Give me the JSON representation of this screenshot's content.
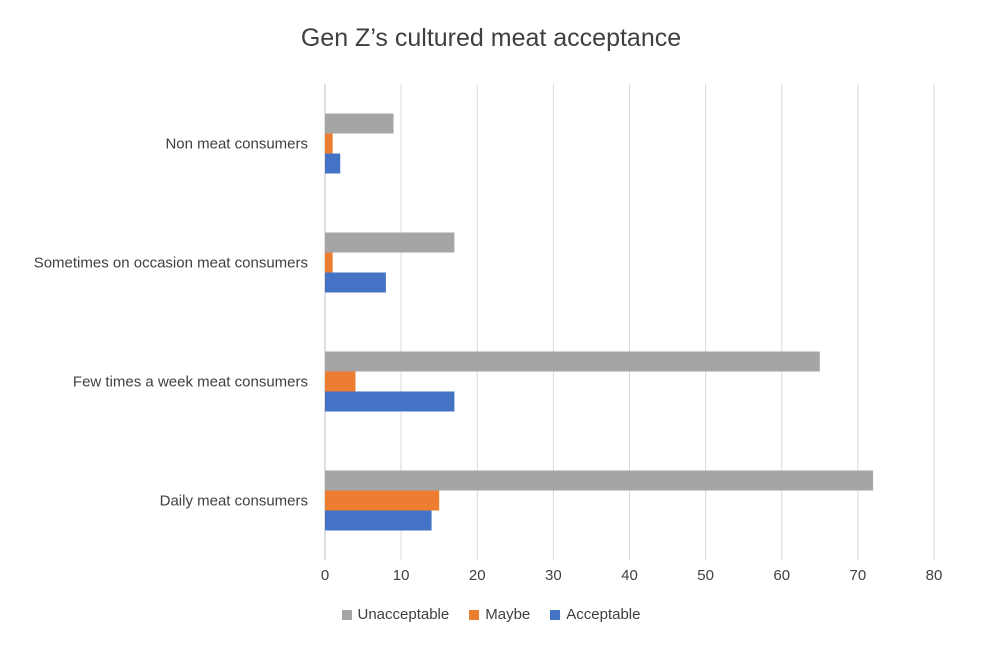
{
  "chart_data": {
    "type": "bar",
    "orientation": "horizontal",
    "title": "Gen Z’s cultured meat acceptance",
    "categories": [
      "Non meat consumers",
      "Sometimes on occasion meat consumers",
      "Few times a week meat consumers",
      "Daily meat consumers"
    ],
    "series": [
      {
        "name": "Unacceptable",
        "color": "#A5A5A5",
        "values": [
          9,
          17,
          65,
          72
        ]
      },
      {
        "name": "Maybe",
        "color": "#ED7D31",
        "values": [
          1,
          1,
          4,
          15
        ]
      },
      {
        "name": "Acceptable",
        "color": "#4472C4",
        "values": [
          2,
          8,
          17,
          14
        ]
      }
    ],
    "xlim": [
      0,
      80
    ],
    "xticks": [
      "0",
      "10",
      "20",
      "30",
      "40",
      "50",
      "60",
      "70",
      "80"
    ],
    "grid": true,
    "legend_position": "bottom"
  }
}
